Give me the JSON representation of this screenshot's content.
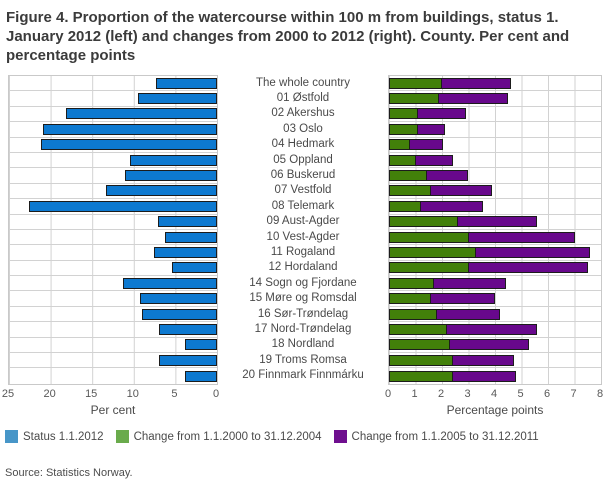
{
  "figure": {
    "title": "Figure 4. Proportion of the watercourse within 100 m from buildings, status 1. January 2012 (left) and changes from 2000 to 2012 (right). County. Per cent and percentage points",
    "source": "Source: Statistics Norway."
  },
  "colors": {
    "bar_blue": "#0d79d0",
    "bar_green": "#42800a",
    "bar_purple": "#68088c",
    "bar_outline": "#1c1c1c",
    "gridline": "#d2d2d2",
    "title_text": "#3b3b3b",
    "legend_swatch_blue": "#4796c8",
    "legend_swatch_green": "#6aab4c",
    "legend_swatch_purple": "#6f0f8f"
  },
  "chart_data": {
    "type": "bar",
    "orientation": "horizontal",
    "grid": true,
    "categories": [
      "The whole country",
      "01 Østfold",
      "02 Akershus",
      "03 Oslo",
      "04 Hedmark",
      "05 Oppland",
      "06 Buskerud",
      "07 Vestfold",
      "08 Telemark",
      "09 Aust-Agder",
      "10 Vest-Agder",
      "11 Rogaland",
      "12 Hordaland",
      "14 Sogn og Fjordane",
      "15 Møre og Romsdal",
      "16 Sør-Trøndelag",
      "17 Nord-Trøndelag",
      "18 Nordland",
      "19 Troms Romsa",
      "20 Finnmark Finnmárku"
    ],
    "panels": [
      {
        "id": "left",
        "xlabel": "Per cent",
        "xlim": [
          25,
          0
        ],
        "axis_reversed": true,
        "ticks": [
          "25",
          "20",
          "15",
          "10",
          "5",
          "0"
        ],
        "series": [
          {
            "name": "Status 1.1.2012",
            "color": "#0d79d0",
            "values": [
              7.3,
              9.5,
              18.1,
              20.9,
              21.2,
              10.4,
              11.1,
              13.4,
              22.6,
              7.1,
              6.3,
              7.6,
              5.4,
              11.3,
              9.3,
              9.0,
              7.0,
              3.9,
              7.0,
              3.9
            ]
          }
        ]
      },
      {
        "id": "right",
        "xlabel": "Percentage points",
        "xlim": [
          0,
          8
        ],
        "axis_reversed": false,
        "ticks": [
          "0",
          "1",
          "2",
          "3",
          "4",
          "5",
          "6",
          "7",
          "8"
        ],
        "series": [
          {
            "name": "Change from 1.1.2000 to 31.12.2004",
            "color": "#42800a",
            "values": [
              2.0,
              1.9,
              1.1,
              1.1,
              0.8,
              1.0,
              1.45,
              1.6,
              1.2,
              2.6,
              3.0,
              3.3,
              3.0,
              1.7,
              1.6,
              1.8,
              2.2,
              2.3,
              2.4,
              2.4
            ]
          },
          {
            "name": "Change from 1.1.2005 to 31.12.2011",
            "color": "#68088c",
            "values": [
              2.6,
              2.6,
              1.8,
              1.0,
              1.25,
              1.4,
              1.55,
              2.3,
              2.35,
              3.0,
              4.0,
              4.3,
              4.5,
              2.7,
              2.4,
              2.4,
              3.4,
              3.0,
              2.3,
              2.4
            ]
          }
        ]
      }
    ],
    "legend": [
      {
        "label": "Status 1.1.2012",
        "swatch_color": "#4796c8"
      },
      {
        "label": "Change from 1.1.2000 to 31.12.2004",
        "swatch_color": "#6aab4c"
      },
      {
        "label": "Change from 1.1.2005 to 31.12.2011",
        "swatch_color": "#6f0f8f"
      }
    ]
  }
}
